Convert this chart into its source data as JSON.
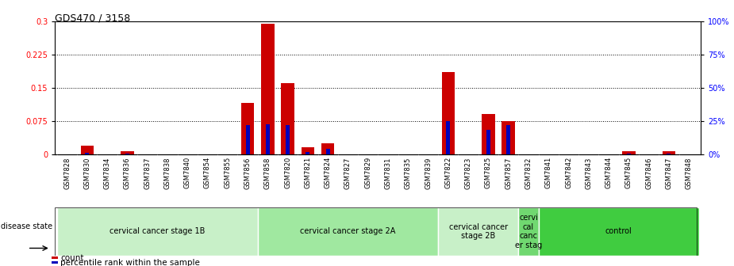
{
  "title": "GDS470 / 3158",
  "samples": [
    "GSM7828",
    "GSM7830",
    "GSM7834",
    "GSM7836",
    "GSM7837",
    "GSM7838",
    "GSM7840",
    "GSM7854",
    "GSM7855",
    "GSM7856",
    "GSM7858",
    "GSM7820",
    "GSM7821",
    "GSM7824",
    "GSM7827",
    "GSM7829",
    "GSM7831",
    "GSM7835",
    "GSM7839",
    "GSM7822",
    "GSM7823",
    "GSM7825",
    "GSM7857",
    "GSM7832",
    "GSM7841",
    "GSM7842",
    "GSM7843",
    "GSM7844",
    "GSM7845",
    "GSM7846",
    "GSM7847",
    "GSM7848"
  ],
  "count_values": [
    0.0,
    0.02,
    0.0,
    0.007,
    0.0,
    0.0,
    0.0,
    0.0,
    0.0,
    0.115,
    0.295,
    0.16,
    0.015,
    0.025,
    0.0,
    0.0,
    0.0,
    0.0,
    0.0,
    0.185,
    0.0,
    0.09,
    0.075,
    0.0,
    0.0,
    0.0,
    0.0,
    0.0,
    0.007,
    0.0,
    0.007,
    0.0
  ],
  "percentile_values": [
    0.0,
    0.003,
    0.0,
    0.002,
    0.0,
    0.0,
    0.0,
    0.0,
    0.0,
    0.065,
    0.068,
    0.065,
    0.005,
    0.012,
    0.0,
    0.0,
    0.0,
    0.0,
    0.0,
    0.075,
    0.0,
    0.055,
    0.065,
    0.0,
    0.0,
    0.0,
    0.0,
    0.0,
    0.002,
    0.0,
    0.002,
    0.0
  ],
  "groups": [
    {
      "label": "cervical cancer stage 1B",
      "start": 0,
      "end": 10,
      "color": "#c8f0c8"
    },
    {
      "label": "cervical cancer stage 2A",
      "start": 10,
      "end": 19,
      "color": "#a0e8a0"
    },
    {
      "label": "cervical cancer\nstage 2B",
      "start": 19,
      "end": 23,
      "color": "#c8f0c8"
    },
    {
      "label": "cervi\ncal\ncanc\ner stag",
      "start": 23,
      "end": 24,
      "color": "#70d870"
    },
    {
      "label": "control",
      "start": 24,
      "end": 32,
      "color": "#40cc40"
    }
  ],
  "ylim_left": [
    0,
    0.3
  ],
  "ylim_right": [
    0,
    100
  ],
  "yticks_left": [
    0,
    0.075,
    0.15,
    0.225,
    0.3
  ],
  "yticks_right": [
    0,
    25,
    50,
    75,
    100
  ],
  "bar_color_count": "#cc0000",
  "bar_color_pct": "#0000bb",
  "disease_state_label": "disease state"
}
